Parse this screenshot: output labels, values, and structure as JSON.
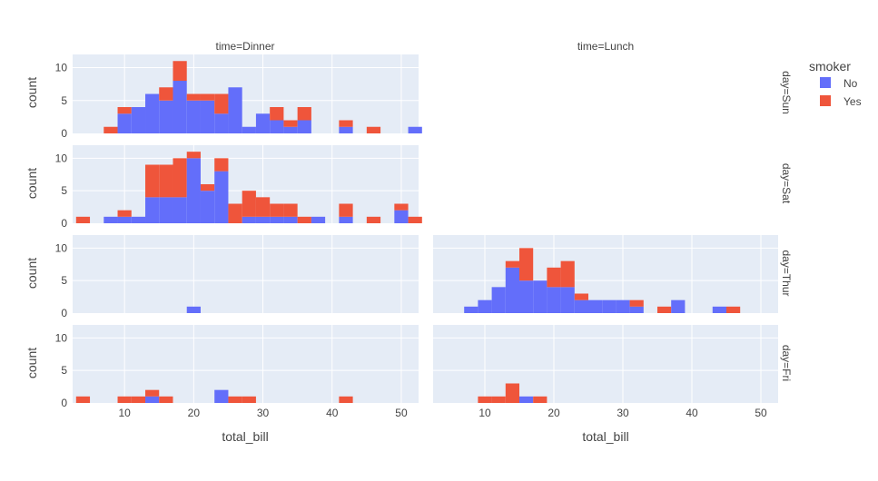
{
  "chart_data": {
    "type": "bar",
    "barmode": "stack",
    "x_variable": "total_bill",
    "y_variable": "count",
    "bin_start": 3,
    "bin_width": 2,
    "xlim": [
      2.5,
      52.5
    ],
    "ylim": [
      0,
      12
    ],
    "x_ticks": [
      10,
      20,
      30,
      40,
      50
    ],
    "y_ticks": [
      0,
      5,
      10
    ],
    "grid": true,
    "columns": [
      "time=Dinner",
      "time=Lunch"
    ],
    "rows": [
      "day=Sun",
      "day=Sat",
      "day=Thur",
      "day=Fri"
    ],
    "xlabel": "total_bill",
    "ylabel": "count",
    "legend": {
      "title": "smoker",
      "placement": "top-right",
      "entries": [
        {
          "name": "No",
          "color": "#636efa"
        },
        {
          "name": "Yes",
          "color": "#ef553b"
        }
      ]
    },
    "panels": [
      {
        "row": "day=Sun",
        "col": "time=Dinner",
        "visible": true,
        "no": [
          0,
          0,
          0,
          3,
          4,
          6,
          5,
          8,
          5,
          5,
          3,
          7,
          1,
          3,
          2,
          1,
          2,
          0,
          0,
          1,
          0,
          0,
          0,
          0,
          1
        ],
        "yes": [
          0,
          0,
          1,
          1,
          0,
          0,
          2,
          3,
          1,
          1,
          3,
          0,
          0,
          0,
          2,
          1,
          2,
          0,
          0,
          1,
          0,
          1,
          0,
          0,
          0
        ]
      },
      {
        "row": "day=Sun",
        "col": "time=Lunch",
        "visible": false
      },
      {
        "row": "day=Sat",
        "col": "time=Dinner",
        "visible": true,
        "no": [
          0,
          0,
          1,
          1,
          1,
          4,
          4,
          4,
          10,
          5,
          8,
          0,
          1,
          1,
          1,
          1,
          0,
          1,
          0,
          1,
          0,
          0,
          0,
          2,
          0
        ],
        "yes": [
          1,
          0,
          0,
          1,
          0,
          5,
          5,
          6,
          1,
          1,
          2,
          3,
          4,
          3,
          2,
          2,
          1,
          0,
          0,
          2,
          0,
          1,
          0,
          1,
          1
        ]
      },
      {
        "row": "day=Sat",
        "col": "time=Lunch",
        "visible": false
      },
      {
        "row": "day=Thur",
        "col": "time=Dinner",
        "visible": true,
        "no": [
          0,
          0,
          0,
          0,
          0,
          0,
          0,
          0,
          1,
          0,
          0,
          0,
          0,
          0,
          0,
          0,
          0,
          0,
          0,
          0,
          0,
          0,
          0,
          0,
          0
        ],
        "yes": [
          0,
          0,
          0,
          0,
          0,
          0,
          0,
          0,
          0,
          0,
          0,
          0,
          0,
          0,
          0,
          0,
          0,
          0,
          0,
          0,
          0,
          0,
          0,
          0,
          0
        ]
      },
      {
        "row": "day=Thur",
        "col": "time=Lunch",
        "visible": true,
        "no": [
          0,
          0,
          1,
          2,
          4,
          7,
          5,
          5,
          4,
          4,
          2,
          2,
          2,
          2,
          1,
          0,
          0,
          2,
          0,
          0,
          1,
          0,
          0,
          0,
          0
        ],
        "yes": [
          0,
          0,
          0,
          0,
          0,
          1,
          5,
          0,
          3,
          4,
          1,
          0,
          0,
          0,
          1,
          0,
          1,
          0,
          0,
          0,
          0,
          1,
          0,
          0,
          0
        ]
      },
      {
        "row": "day=Fri",
        "col": "time=Dinner",
        "visible": true,
        "no": [
          0,
          0,
          0,
          0,
          0,
          1,
          0,
          0,
          0,
          0,
          2,
          0,
          0,
          0,
          0,
          0,
          0,
          0,
          0,
          0,
          0,
          0,
          0,
          0,
          0
        ],
        "yes": [
          1,
          0,
          0,
          1,
          1,
          1,
          1,
          0,
          0,
          0,
          0,
          1,
          1,
          0,
          0,
          0,
          0,
          0,
          0,
          1,
          0,
          0,
          0,
          0,
          0
        ]
      },
      {
        "row": "day=Fri",
        "col": "time=Lunch",
        "visible": true,
        "no": [
          0,
          0,
          0,
          0,
          0,
          0,
          1,
          0,
          0,
          0,
          0,
          0,
          0,
          0,
          0,
          0,
          0,
          0,
          0,
          0,
          0,
          0,
          0,
          0,
          0
        ],
        "yes": [
          0,
          0,
          0,
          1,
          1,
          3,
          0,
          1,
          0,
          0,
          0,
          0,
          0,
          0,
          0,
          0,
          0,
          0,
          0,
          0,
          0,
          0,
          0,
          0,
          0
        ]
      }
    ]
  }
}
